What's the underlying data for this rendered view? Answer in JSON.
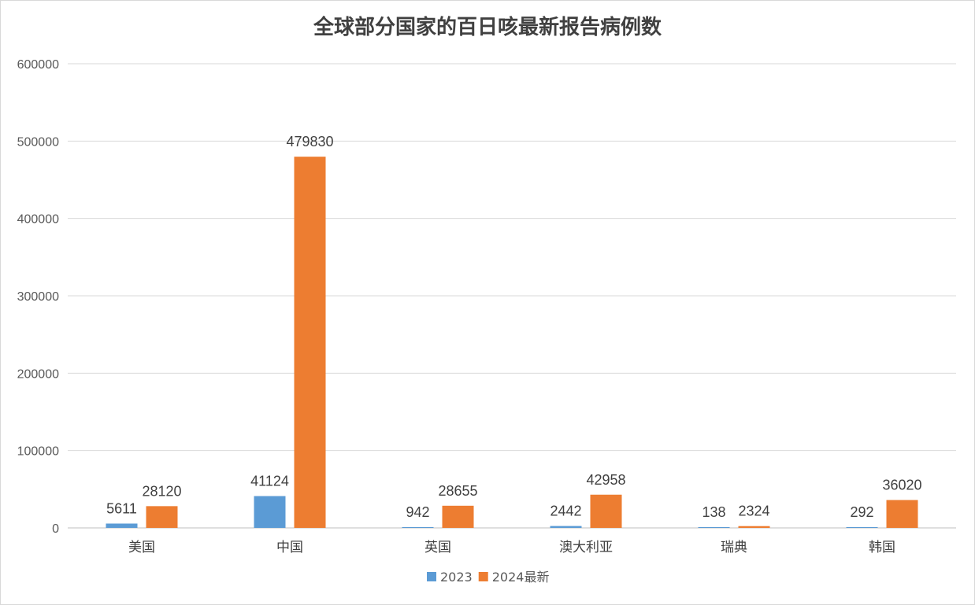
{
  "chart_data": {
    "type": "bar",
    "title": "全球部分国家的百日咳最新报告病例数",
    "xlabel": "",
    "ylabel": "",
    "categories": [
      "美国",
      "中国",
      "英国",
      "澳大利亚",
      "瑞典",
      "韩国"
    ],
    "series": [
      {
        "name": "2023",
        "color": "#5b9bd5",
        "values": [
          5611,
          41124,
          942,
          2442,
          138,
          292
        ]
      },
      {
        "name": "2024最新",
        "color": "#ed7d31",
        "values": [
          28120,
          479830,
          28655,
          42958,
          2324,
          36020
        ]
      }
    ],
    "ylim": [
      0,
      600000
    ],
    "yticks": [
      0,
      100000,
      200000,
      300000,
      400000,
      500000,
      600000
    ],
    "grid": true,
    "legend_position": "bottom"
  }
}
